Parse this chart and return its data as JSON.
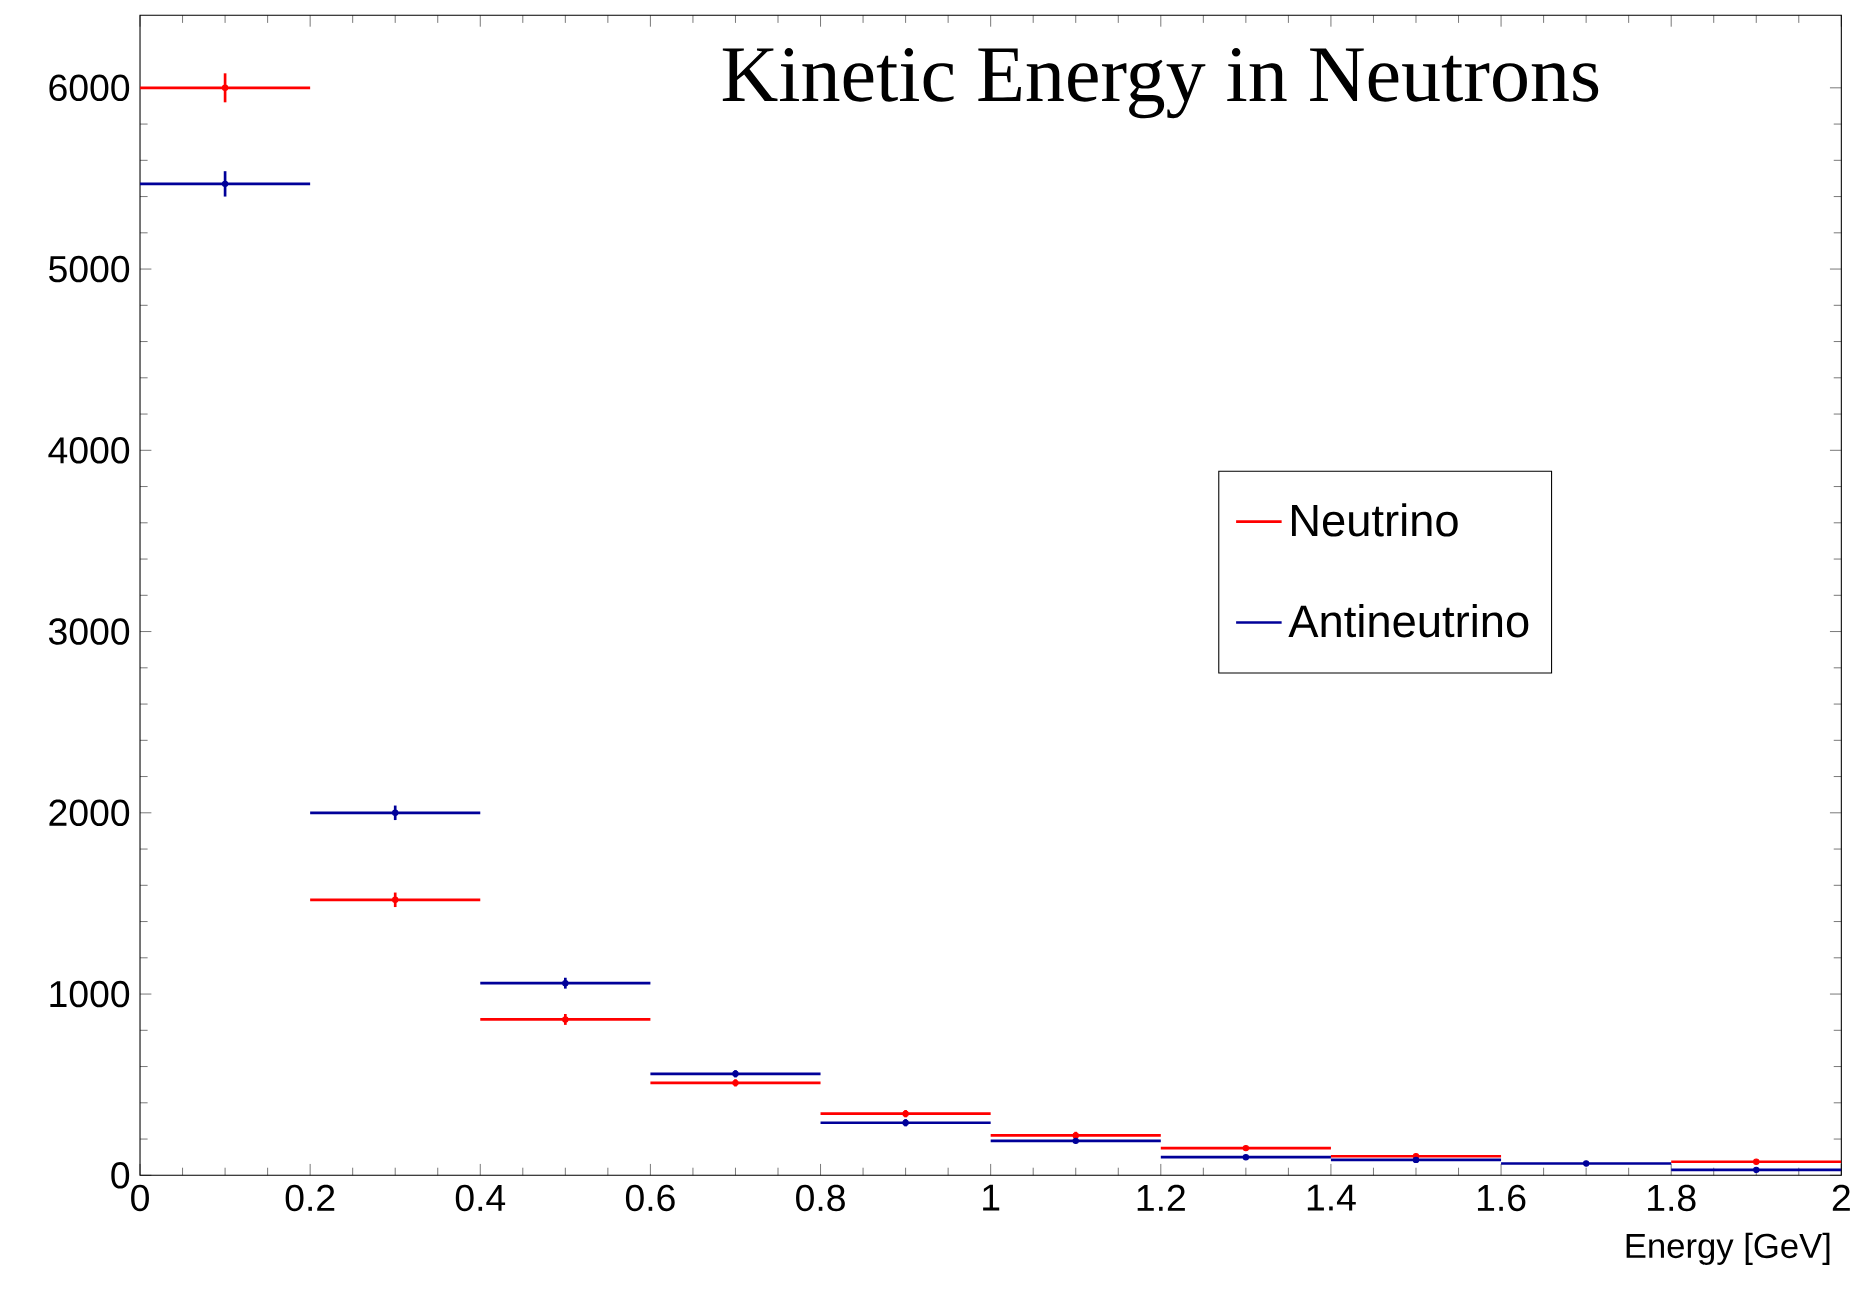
{
  "chart_data": {
    "type": "scatter",
    "title": "Kinetic Energy in Neutrons",
    "xlabel": "Energy [GeV]",
    "x": [
      0.1,
      0.3,
      0.5,
      0.7,
      0.9,
      1.1,
      1.3,
      1.5,
      1.7,
      1.9
    ],
    "series": [
      {
        "name": "Neutrino",
        "color": "#ff0000",
        "values": [
          6000,
          1520,
          860,
          510,
          340,
          220,
          150,
          105,
          null,
          75
        ],
        "xerrors": [
          0.1,
          0.1,
          0.1,
          0.1,
          0.1,
          0.1,
          0.1,
          0.1,
          null,
          0.1
        ],
        "errors": [
          80,
          40,
          30,
          20,
          20,
          20,
          10,
          10,
          null,
          10
        ]
      },
      {
        "name": "Antineutrino",
        "color": "#000099",
        "values": [
          5470,
          2000,
          1060,
          560,
          290,
          190,
          100,
          85,
          65,
          30
        ],
        "xerrors": [
          0.1,
          0.1,
          0.1,
          0.1,
          0.1,
          0.1,
          0.1,
          0.1,
          0.1,
          0.1
        ],
        "errors": [
          70,
          40,
          30,
          20,
          20,
          10,
          10,
          10,
          10,
          10
        ]
      }
    ],
    "xlim": [
      0,
      2
    ],
    "ylim": [
      0,
      6400
    ],
    "xticks": [
      0,
      0.2,
      0.4,
      0.6,
      0.8,
      1,
      1.2,
      1.4,
      1.6,
      1.8,
      2
    ],
    "yticks": [
      0,
      1000,
      2000,
      3000,
      4000,
      5000,
      6000
    ],
    "grid": false,
    "legend": "right"
  }
}
